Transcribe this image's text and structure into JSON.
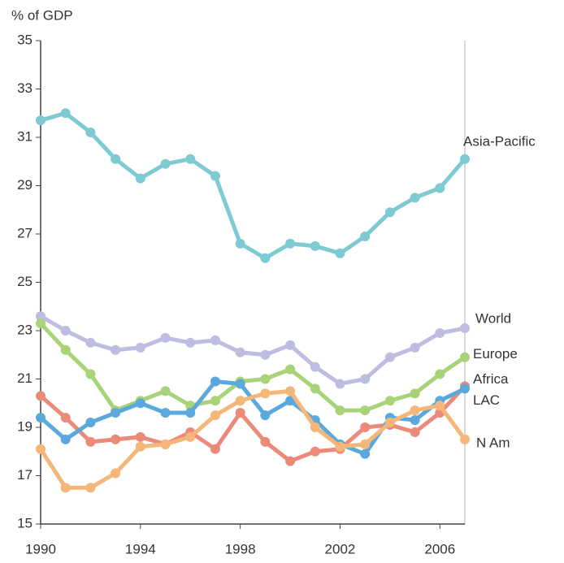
{
  "chart_data": {
    "type": "line",
    "y_label": "% of GDP",
    "x": [
      1990,
      1991,
      1992,
      1993,
      1994,
      1995,
      1996,
      1997,
      1998,
      1999,
      2000,
      2001,
      2002,
      2003,
      2004,
      2005,
      2006,
      2007
    ],
    "xlim": [
      1990,
      2007
    ],
    "xticks": [
      1990,
      1994,
      1998,
      2002,
      2006
    ],
    "ylim": [
      15,
      35
    ],
    "yticks": [
      15,
      17,
      19,
      21,
      23,
      25,
      27,
      29,
      31,
      33,
      35
    ],
    "series": [
      {
        "name": "Asia-Pacific",
        "color": "#7ecad3",
        "values": [
          31.7,
          32.0,
          31.2,
          30.1,
          29.3,
          29.9,
          30.1,
          29.4,
          26.6,
          26.0,
          26.6,
          26.5,
          26.2,
          26.9,
          27.9,
          28.5,
          28.9,
          30.1
        ]
      },
      {
        "name": "World",
        "color": "#bcbde0",
        "values": [
          23.6,
          23.0,
          22.5,
          22.2,
          22.3,
          22.7,
          22.5,
          22.6,
          22.1,
          22.0,
          22.4,
          21.5,
          20.8,
          21.0,
          21.9,
          22.3,
          22.9,
          23.1
        ]
      },
      {
        "name": "Europe",
        "color": "#a8d378",
        "values": [
          23.3,
          22.2,
          21.2,
          19.7,
          20.1,
          20.5,
          19.9,
          20.1,
          20.9,
          21.0,
          21.4,
          20.6,
          19.7,
          19.7,
          20.1,
          20.4,
          21.2,
          21.9
        ]
      },
      {
        "name": "Africa",
        "color": "#ec8a7a",
        "values": [
          20.3,
          19.4,
          18.4,
          18.5,
          18.6,
          18.3,
          18.8,
          18.1,
          19.6,
          18.4,
          17.6,
          18.0,
          18.1,
          19.0,
          19.1,
          18.8,
          19.6,
          20.7
        ]
      },
      {
        "name": "LAC",
        "color": "#5aa9dc",
        "values": [
          19.4,
          18.5,
          19.2,
          19.6,
          20.0,
          19.6,
          19.6,
          20.9,
          20.8,
          19.5,
          20.1,
          19.3,
          18.3,
          17.9,
          19.4,
          19.3,
          20.1,
          20.6
        ]
      },
      {
        "name": "N Am",
        "color": "#f5b679",
        "values": [
          18.1,
          16.5,
          16.5,
          17.1,
          18.2,
          18.3,
          18.6,
          19.5,
          20.1,
          20.4,
          20.5,
          19.0,
          18.2,
          18.3,
          19.2,
          19.7,
          19.9,
          18.5
        ]
      }
    ]
  }
}
